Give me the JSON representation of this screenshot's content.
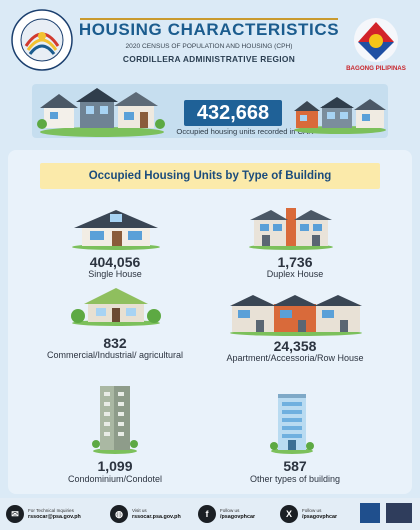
{
  "header": {
    "title": "HOUSING CHARACTERISTICS",
    "subtitle": "2020 CENSUS OF POPULATION AND HOUSING (CPH)",
    "region": "CORDILLERA ADMINISTRATIVE REGION",
    "psa_logo_icon": "philippine-statistics-authority-seal",
    "right_logo_icon": "bagong-pilipinas-logo",
    "right_logo_text": "BAGONG PILIPINAS"
  },
  "summary": {
    "value": "432,668",
    "caption": "Occupied housing units recorded in CAR"
  },
  "section": {
    "title": "Occupied Housing Units by Type of Building"
  },
  "items": [
    {
      "value": "404,056",
      "label": "Single House",
      "icon": "single-house-icon"
    },
    {
      "value": "1,736",
      "label": "Duplex House",
      "icon": "duplex-house-icon"
    },
    {
      "value": "832",
      "label": "Commercial/Industrial/ agricultural",
      "icon": "commercial-building-icon"
    },
    {
      "value": "24,358",
      "label": "Apartment/Accessoria/Row House",
      "icon": "row-house-icon"
    },
    {
      "value": "1,099",
      "label": "Condominium/Condotel",
      "icon": "condominium-icon"
    },
    {
      "value": "587",
      "label": "Other types of building",
      "icon": "other-building-icon"
    }
  ],
  "footer": {
    "email_label": "For Technical Inquiries",
    "email": "rssocar@psa.gov.ph",
    "web_label": "Visit us",
    "web": "rssocar.psa.gov.ph",
    "fb_label": "Follow us",
    "fb": "/psagovphcar",
    "x_label": "Follow us",
    "x": "/psagovphcar"
  },
  "colors": {
    "title": "#1b5c8e",
    "accent": "#1f6197",
    "banner": "#fbeaaa"
  }
}
